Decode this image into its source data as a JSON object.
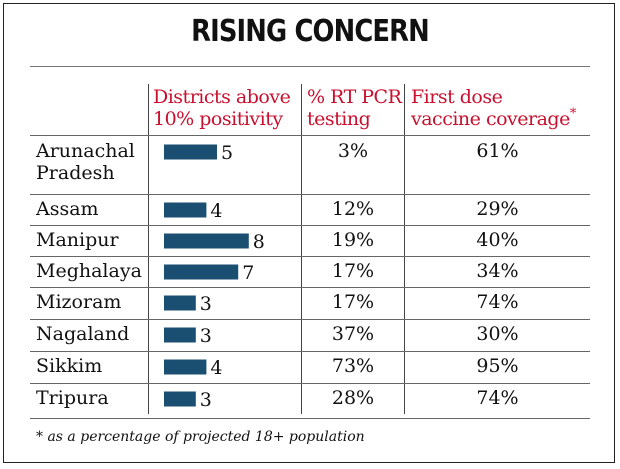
{
  "title": "RISING CONCERN",
  "colors": {
    "header_text": "#c8102e",
    "bar": "#1b4f72",
    "text": "#111111"
  },
  "columns": {
    "districts": "Districts above 10% positivity",
    "districts_line1": "Districts above",
    "districts_line2": "10% positivity",
    "rtpcr_line1": "% RT PCR",
    "rtpcr_line2": "testing",
    "vaccine_line1": "First dose",
    "vaccine_line2": "vaccine coverage",
    "vaccine_note_mark": "*"
  },
  "rows": [
    {
      "state_line1": "Arunachal",
      "state_line2": "Pradesh",
      "districts_label": "5",
      "rtpcr": "3%",
      "vaccine": "61%"
    },
    {
      "state_line1": "Assam",
      "state_line2": "",
      "districts_label": "4",
      "rtpcr": "12%",
      "vaccine": "29%"
    },
    {
      "state_line1": "Manipur",
      "state_line2": "",
      "districts_label": "8",
      "rtpcr": "19%",
      "vaccine": "40%"
    },
    {
      "state_line1": "Meghalaya",
      "state_line2": "",
      "districts_label": "7",
      "rtpcr": "17%",
      "vaccine": "34%"
    },
    {
      "state_line1": "Mizoram",
      "state_line2": "",
      "districts_label": "3",
      "rtpcr": "17%",
      "vaccine": "74%"
    },
    {
      "state_line1": "Nagaland",
      "state_line2": "",
      "districts_label": "3",
      "rtpcr": "37%",
      "vaccine": "30%"
    },
    {
      "state_line1": "Sikkim",
      "state_line2": "",
      "districts_label": "4",
      "rtpcr": "73%",
      "vaccine": "95%"
    },
    {
      "state_line1": "Tripura",
      "state_line2": "",
      "districts_label": "3",
      "rtpcr": "28%",
      "vaccine": "74%"
    }
  ],
  "footnote": "* as a percentage of projected 18+ population",
  "chart_data": {
    "type": "table",
    "title": "RISING CONCERN",
    "categories": [
      "Arunachal Pradesh",
      "Assam",
      "Manipur",
      "Meghalaya",
      "Mizoram",
      "Nagaland",
      "Sikkim",
      "Tripura"
    ],
    "series": [
      {
        "name": "Districts above 10% positivity",
        "values": [
          5,
          4,
          8,
          7,
          3,
          3,
          4,
          3
        ]
      },
      {
        "name": "% RT PCR testing",
        "values": [
          3,
          12,
          19,
          17,
          17,
          37,
          73,
          28
        ]
      },
      {
        "name": "First dose vaccine coverage*",
        "values": [
          61,
          29,
          40,
          34,
          74,
          30,
          95,
          74
        ]
      }
    ],
    "bar_series": "Districts above 10% positivity"
  }
}
